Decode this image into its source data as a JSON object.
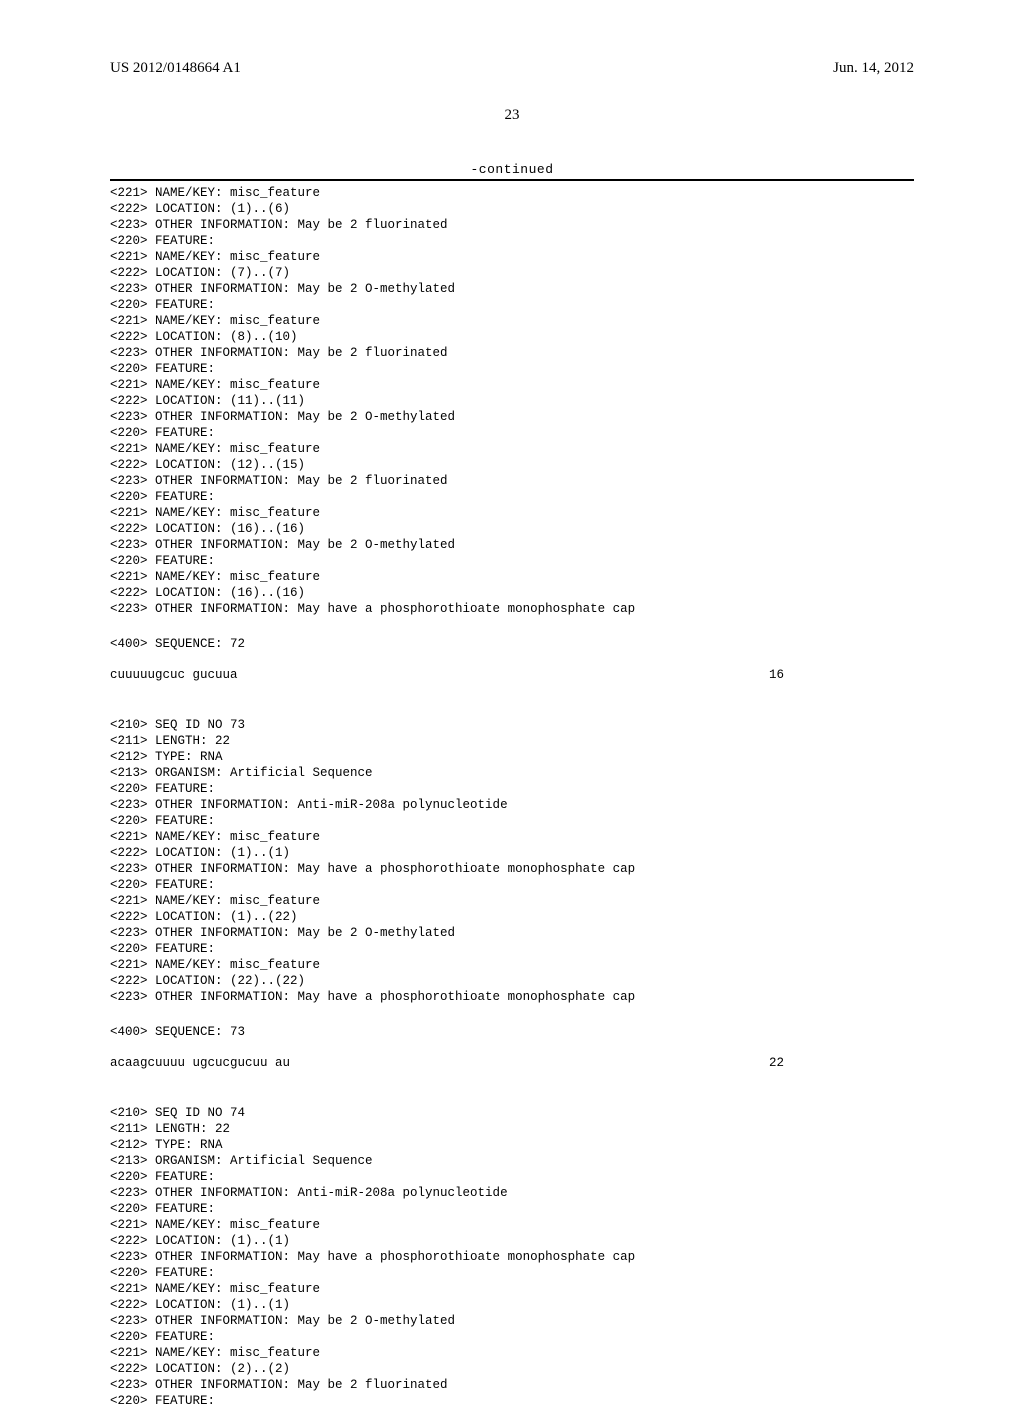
{
  "header": {
    "left": "US 2012/0148664 A1",
    "right": "Jun. 14, 2012"
  },
  "page_number": "23",
  "continued_label": "-continued",
  "block1": {
    "lines": [
      "<221> NAME/KEY: misc_feature",
      "<222> LOCATION: (1)..(6)",
      "<223> OTHER INFORMATION: May be 2 fluorinated",
      "<220> FEATURE:",
      "<221> NAME/KEY: misc_feature",
      "<222> LOCATION: (7)..(7)",
      "<223> OTHER INFORMATION: May be 2 O-methylated",
      "<220> FEATURE:",
      "<221> NAME/KEY: misc_feature",
      "<222> LOCATION: (8)..(10)",
      "<223> OTHER INFORMATION: May be 2 fluorinated",
      "<220> FEATURE:",
      "<221> NAME/KEY: misc_feature",
      "<222> LOCATION: (11)..(11)",
      "<223> OTHER INFORMATION: May be 2 O-methylated",
      "<220> FEATURE:",
      "<221> NAME/KEY: misc_feature",
      "<222> LOCATION: (12)..(15)",
      "<223> OTHER INFORMATION: May be 2 fluorinated",
      "<220> FEATURE:",
      "<221> NAME/KEY: misc_feature",
      "<222> LOCATION: (16)..(16)",
      "<223> OTHER INFORMATION: May be 2 O-methylated",
      "<220> FEATURE:",
      "<221> NAME/KEY: misc_feature",
      "<222> LOCATION: (16)..(16)",
      "<223> OTHER INFORMATION: May have a phosphorothioate monophosphate cap"
    ],
    "seq_label": "<400> SEQUENCE: 72",
    "seq_text": "cuuuuugcuc gucuua",
    "seq_len": "16"
  },
  "block2": {
    "lines": [
      "<210> SEQ ID NO 73",
      "<211> LENGTH: 22",
      "<212> TYPE: RNA",
      "<213> ORGANISM: Artificial Sequence",
      "<220> FEATURE:",
      "<223> OTHER INFORMATION: Anti-miR-208a polynucleotide",
      "<220> FEATURE:",
      "<221> NAME/KEY: misc_feature",
      "<222> LOCATION: (1)..(1)",
      "<223> OTHER INFORMATION: May have a phosphorothioate monophosphate cap",
      "<220> FEATURE:",
      "<221> NAME/KEY: misc_feature",
      "<222> LOCATION: (1)..(22)",
      "<223> OTHER INFORMATION: May be 2 O-methylated",
      "<220> FEATURE:",
      "<221> NAME/KEY: misc_feature",
      "<222> LOCATION: (22)..(22)",
      "<223> OTHER INFORMATION: May have a phosphorothioate monophosphate cap"
    ],
    "seq_label": "<400> SEQUENCE: 73",
    "seq_text": "acaagcuuuu ugcucgucuu au",
    "seq_len": "22"
  },
  "block3": {
    "lines": [
      "<210> SEQ ID NO 74",
      "<211> LENGTH: 22",
      "<212> TYPE: RNA",
      "<213> ORGANISM: Artificial Sequence",
      "<220> FEATURE:",
      "<223> OTHER INFORMATION: Anti-miR-208a polynucleotide",
      "<220> FEATURE:",
      "<221> NAME/KEY: misc_feature",
      "<222> LOCATION: (1)..(1)",
      "<223> OTHER INFORMATION: May have a phosphorothioate monophosphate cap",
      "<220> FEATURE:",
      "<221> NAME/KEY: misc_feature",
      "<222> LOCATION: (1)..(1)",
      "<223> OTHER INFORMATION: May be 2 O-methylated",
      "<220> FEATURE:",
      "<221> NAME/KEY: misc_feature",
      "<222> LOCATION: (2)..(2)",
      "<223> OTHER INFORMATION: May be 2 fluorinated",
      "<220> FEATURE:"
    ]
  }
}
